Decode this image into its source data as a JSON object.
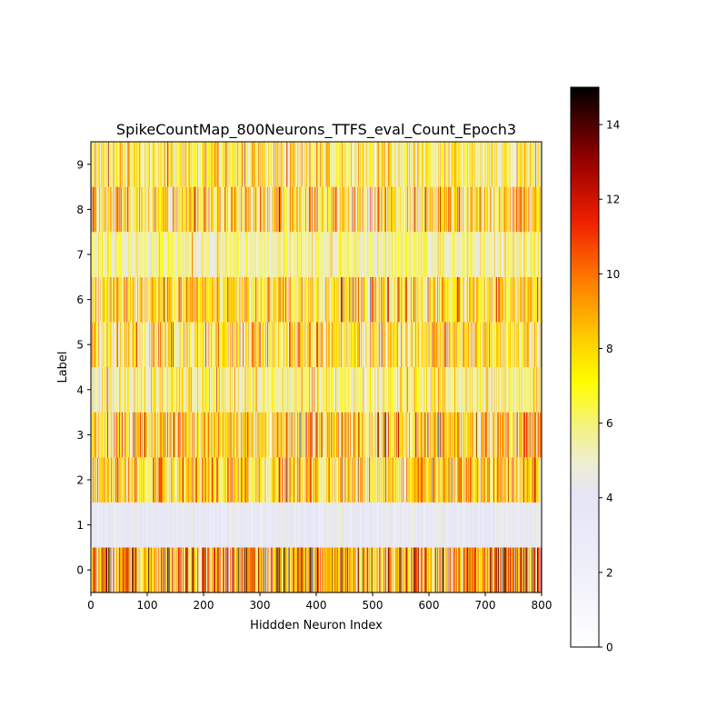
{
  "chart_data": {
    "type": "heatmap",
    "title": "SpikeCountMap_800Neurons_TTFS_eval_Count_Epoch3",
    "xlabel": "Hiddden Neuron Index",
    "ylabel": "Label",
    "xlim": [
      0,
      800
    ],
    "ylim": [
      -0.5,
      9.5
    ],
    "x_ticks": [
      0,
      100,
      200,
      300,
      400,
      500,
      600,
      700,
      800
    ],
    "y_ticks": [
      0,
      1,
      2,
      3,
      4,
      5,
      6,
      7,
      8,
      9
    ],
    "n_neurons": 800,
    "rows": [
      {
        "label": 0,
        "mean_count": 8.5,
        "spread": 3.5
      },
      {
        "label": 1,
        "mean_count": 3.6,
        "spread": 0.8
      },
      {
        "label": 2,
        "mean_count": 7.2,
        "spread": 2.6
      },
      {
        "label": 3,
        "mean_count": 7.4,
        "spread": 3.0
      },
      {
        "label": 4,
        "mean_count": 5.8,
        "spread": 2.0
      },
      {
        "label": 5,
        "mean_count": 6.8,
        "spread": 2.6
      },
      {
        "label": 6,
        "mean_count": 7.0,
        "spread": 2.6
      },
      {
        "label": 7,
        "mean_count": 5.4,
        "spread": 1.6
      },
      {
        "label": 8,
        "mean_count": 7.0,
        "spread": 2.8
      },
      {
        "label": 9,
        "mean_count": 6.2,
        "spread": 2.4
      }
    ],
    "colorbar": {
      "colormap": "gist_heat_r",
      "min": 0,
      "max": 15,
      "ticks": [
        0,
        2,
        4,
        6,
        8,
        10,
        12,
        14
      ]
    },
    "grid": false,
    "legend": "none"
  }
}
